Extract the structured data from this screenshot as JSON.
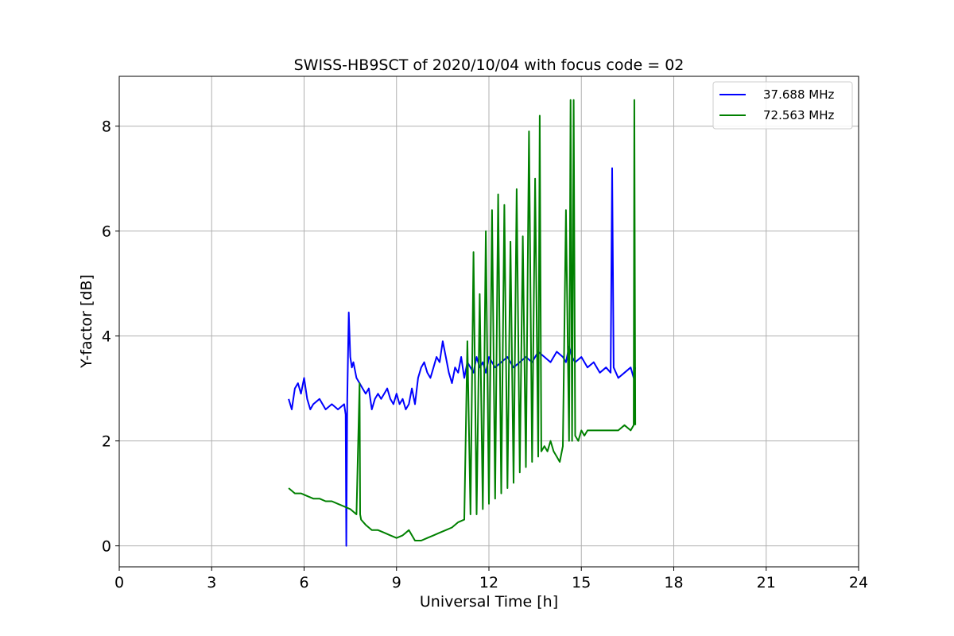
{
  "chart_data": {
    "type": "line",
    "title": "SWISS-HB9SCT of 2020/10/04 with focus code = 02",
    "xlabel": "Universal Time [h]",
    "ylabel": "Y-factor [dB]",
    "xlim": [
      0,
      24
    ],
    "ylim": [
      -0.4,
      8.95
    ],
    "xticks": [
      0,
      3,
      6,
      9,
      12,
      15,
      18,
      21,
      24
    ],
    "yticks": [
      0,
      2,
      4,
      6,
      8
    ],
    "grid": true,
    "legend_position": "top-right",
    "series": [
      {
        "name": "37.688 MHz",
        "color": "#0000ff",
        "x": [
          5.5,
          5.6,
          5.7,
          5.8,
          5.9,
          6.0,
          6.1,
          6.2,
          6.3,
          6.5,
          6.7,
          6.9,
          7.1,
          7.3,
          7.35,
          7.37,
          7.4,
          7.45,
          7.5,
          7.55,
          7.6,
          7.7,
          7.8,
          7.9,
          8.0,
          8.1,
          8.2,
          8.3,
          8.4,
          8.5,
          8.6,
          8.7,
          8.8,
          8.9,
          9.0,
          9.1,
          9.2,
          9.3,
          9.4,
          9.5,
          9.6,
          9.7,
          9.8,
          9.9,
          10.0,
          10.1,
          10.2,
          10.3,
          10.4,
          10.5,
          10.6,
          10.7,
          10.8,
          10.9,
          11.0,
          11.1,
          11.2,
          11.3,
          11.4,
          11.5,
          11.6,
          11.7,
          11.8,
          11.9,
          12.0,
          12.2,
          12.4,
          12.6,
          12.8,
          13.0,
          13.2,
          13.4,
          13.6,
          13.8,
          14.0,
          14.2,
          14.4,
          14.5,
          14.6,
          14.7,
          14.8,
          15.0,
          15.2,
          15.4,
          15.6,
          15.8,
          15.95,
          16.0,
          16.05,
          16.2,
          16.4,
          16.6,
          16.7,
          16.75
        ],
        "y": [
          2.8,
          2.6,
          3.0,
          3.1,
          2.9,
          3.2,
          2.8,
          2.6,
          2.7,
          2.8,
          2.6,
          2.7,
          2.6,
          2.7,
          2.5,
          0.0,
          2.8,
          4.45,
          3.6,
          3.4,
          3.5,
          3.2,
          3.1,
          3.0,
          2.9,
          3.0,
          2.6,
          2.8,
          2.9,
          2.8,
          2.9,
          3.0,
          2.8,
          2.7,
          2.9,
          2.7,
          2.8,
          2.6,
          2.7,
          3.0,
          2.7,
          3.2,
          3.4,
          3.5,
          3.3,
          3.2,
          3.4,
          3.6,
          3.5,
          3.9,
          3.6,
          3.3,
          3.1,
          3.4,
          3.3,
          3.6,
          3.2,
          3.5,
          3.4,
          3.3,
          3.6,
          3.4,
          3.5,
          3.3,
          3.6,
          3.4,
          3.5,
          3.6,
          3.4,
          3.5,
          3.6,
          3.5,
          3.7,
          3.6,
          3.5,
          3.7,
          3.6,
          3.5,
          3.8,
          3.6,
          3.5,
          3.6,
          3.4,
          3.5,
          3.3,
          3.4,
          3.3,
          7.2,
          3.4,
          3.2,
          3.3,
          3.4,
          3.2,
          3.4
        ]
      },
      {
        "name": "72.563 MHz",
        "color": "#008000",
        "x": [
          5.5,
          5.7,
          5.9,
          6.1,
          6.3,
          6.5,
          6.7,
          6.9,
          7.1,
          7.3,
          7.5,
          7.7,
          7.8,
          7.82,
          7.85,
          8.0,
          8.2,
          8.4,
          8.6,
          8.8,
          9.0,
          9.2,
          9.4,
          9.6,
          9.8,
          10.0,
          10.2,
          10.4,
          10.6,
          10.8,
          11.0,
          11.2,
          11.3,
          11.4,
          11.5,
          11.6,
          11.7,
          11.8,
          11.9,
          12.0,
          12.1,
          12.2,
          12.3,
          12.4,
          12.5,
          12.6,
          12.7,
          12.8,
          12.9,
          13.0,
          13.1,
          13.2,
          13.3,
          13.4,
          13.5,
          13.6,
          13.65,
          13.7,
          13.8,
          13.9,
          14.0,
          14.1,
          14.2,
          14.3,
          14.4,
          14.5,
          14.6,
          14.65,
          14.7,
          14.75,
          14.8,
          14.9,
          15.0,
          15.1,
          15.2,
          15.4,
          15.6,
          15.8,
          16.0,
          16.2,
          16.4,
          16.6,
          16.7,
          16.72,
          16.75
        ],
        "y": [
          1.1,
          1.0,
          1.0,
          0.95,
          0.9,
          0.9,
          0.85,
          0.85,
          0.8,
          0.75,
          0.7,
          0.6,
          3.1,
          0.6,
          0.5,
          0.4,
          0.3,
          0.3,
          0.25,
          0.2,
          0.15,
          0.2,
          0.3,
          0.1,
          0.1,
          0.15,
          0.2,
          0.25,
          0.3,
          0.35,
          0.45,
          0.5,
          3.9,
          0.6,
          5.6,
          0.6,
          4.8,
          0.7,
          6.0,
          0.8,
          6.4,
          0.9,
          6.7,
          1.0,
          6.5,
          1.1,
          5.8,
          1.2,
          6.8,
          1.4,
          5.9,
          1.5,
          7.9,
          1.6,
          7.0,
          1.7,
          8.2,
          1.8,
          1.9,
          1.8,
          2.0,
          1.8,
          1.7,
          1.6,
          1.9,
          6.4,
          2.0,
          8.5,
          2.0,
          8.5,
          2.1,
          2.0,
          2.2,
          2.1,
          2.2,
          2.2,
          2.2,
          2.2,
          2.2,
          2.2,
          2.3,
          2.2,
          2.3,
          8.5,
          2.3
        ]
      }
    ]
  }
}
